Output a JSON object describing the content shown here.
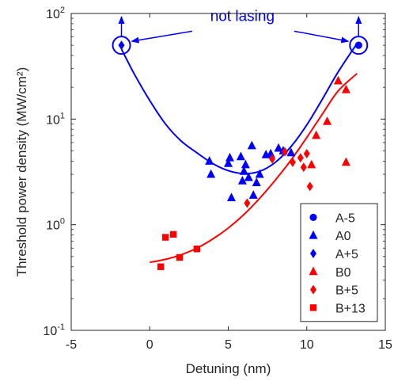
{
  "chart_data": {
    "type": "scatter",
    "xlabel": "Detuning (nm)",
    "ylabel": "Threshold power density (MW/cm²)",
    "xlim": [
      -5,
      15
    ],
    "ylim_exponent": [
      -1,
      2
    ],
    "log_y": true,
    "grid": false,
    "legend_position": "lower-right",
    "x_ticks": [
      {
        "value": -5,
        "label": "-5"
      },
      {
        "value": 0,
        "label": "0"
      },
      {
        "value": 5,
        "label": "5"
      },
      {
        "value": 10,
        "label": "10"
      },
      {
        "value": 15,
        "label": "15"
      }
    ],
    "y_ticks": [
      {
        "exp": -1,
        "base": "10",
        "sup": "-1"
      },
      {
        "exp": 0,
        "base": "10",
        "sup": "0"
      },
      {
        "exp": 1,
        "base": "10",
        "sup": "1"
      },
      {
        "exp": 2,
        "base": "10",
        "sup": "2"
      }
    ],
    "annotation": {
      "text": "not lasing",
      "color": "#0000ff"
    },
    "series": [
      {
        "name": "A-5",
        "marker": "circle",
        "color": "#0000ff",
        "points": [
          [
            13.3,
            50
          ]
        ]
      },
      {
        "name": "A0",
        "marker": "triangle",
        "color": "#0000ff",
        "points": [
          [
            3.8,
            4.0
          ],
          [
            3.9,
            3.0
          ],
          [
            5.0,
            3.8
          ],
          [
            5.1,
            4.3
          ],
          [
            5.2,
            1.8
          ],
          [
            5.8,
            4.4
          ],
          [
            5.9,
            2.6
          ],
          [
            6.0,
            3.2
          ],
          [
            6.1,
            3.7
          ],
          [
            6.3,
            2.8
          ],
          [
            6.5,
            5.6
          ],
          [
            6.6,
            1.9
          ],
          [
            6.8,
            2.5
          ],
          [
            7.0,
            3.0
          ],
          [
            7.4,
            4.6
          ],
          [
            7.7,
            4.7
          ],
          [
            8.2,
            5.3
          ],
          [
            8.5,
            5.0
          ],
          [
            9.0,
            4.8
          ]
        ]
      },
      {
        "name": "A+5",
        "marker": "diamond",
        "color": "#0000ff",
        "points": [
          [
            -1.8,
            50
          ]
        ]
      },
      {
        "name": "B0",
        "marker": "triangle",
        "color": "#ff0000",
        "points": [
          [
            10.3,
            3.7
          ],
          [
            10.6,
            7.0
          ],
          [
            11.3,
            9.5
          ],
          [
            12.0,
            23
          ],
          [
            12.5,
            19
          ],
          [
            12.5,
            3.9
          ]
        ]
      },
      {
        "name": "B+5",
        "marker": "diamond",
        "color": "#ff0000",
        "points": [
          [
            6.2,
            1.6
          ],
          [
            7.8,
            4.2
          ],
          [
            8.6,
            4.9
          ],
          [
            9.1,
            3.9
          ],
          [
            9.6,
            4.3
          ],
          [
            9.8,
            3.5
          ],
          [
            10.0,
            4.7
          ],
          [
            10.2,
            2.3
          ]
        ]
      },
      {
        "name": "B+13",
        "marker": "square",
        "color": "#ff0000",
        "points": [
          [
            0.7,
            0.4
          ],
          [
            1.0,
            0.76
          ],
          [
            1.5,
            0.81
          ],
          [
            1.9,
            0.49
          ],
          [
            3.0,
            0.59
          ]
        ]
      }
    ],
    "fit_curves": [
      {
        "color": "#0000ff",
        "points": [
          [
            -1.8,
            46
          ],
          [
            -1.0,
            27
          ],
          [
            0.0,
            15
          ],
          [
            1.0,
            9.0
          ],
          [
            2.0,
            6.2
          ],
          [
            3.0,
            4.8
          ],
          [
            4.0,
            3.8
          ],
          [
            5.0,
            3.25
          ],
          [
            6.0,
            3.05
          ],
          [
            7.0,
            3.2
          ],
          [
            8.0,
            3.9
          ],
          [
            9.0,
            5.5
          ],
          [
            10.0,
            8.8
          ],
          [
            11.0,
            15.5
          ],
          [
            12.0,
            28
          ],
          [
            13.2,
            52
          ]
        ]
      },
      {
        "color": "#ff0000",
        "points": [
          [
            0.0,
            0.44
          ],
          [
            1.0,
            0.47
          ],
          [
            2.0,
            0.52
          ],
          [
            3.0,
            0.6
          ],
          [
            4.0,
            0.73
          ],
          [
            5.0,
            0.93
          ],
          [
            6.0,
            1.25
          ],
          [
            7.0,
            1.78
          ],
          [
            8.0,
            2.65
          ],
          [
            9.0,
            4.1
          ],
          [
            10.0,
            6.7
          ],
          [
            11.0,
            11.2
          ],
          [
            12.0,
            18.5
          ],
          [
            13.2,
            27
          ]
        ]
      }
    ]
  }
}
